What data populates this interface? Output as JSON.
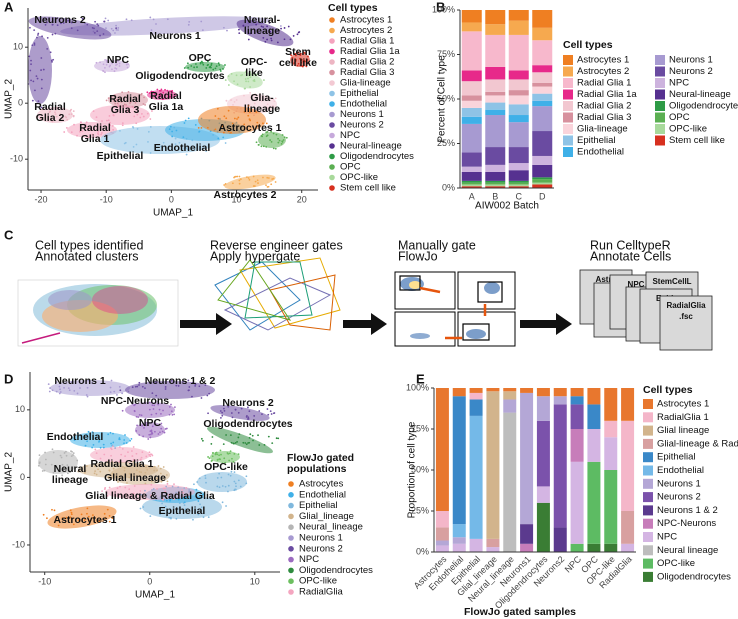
{
  "panel_letters": [
    "A",
    "B",
    "C",
    "D",
    "E"
  ],
  "chart_data": [
    {
      "type": "umap",
      "x_label": "UMAP_1",
      "y_label": "UMAP_2",
      "xlim": [
        -22,
        22.5
      ],
      "xticks": [
        -20,
        -10,
        0,
        10,
        20
      ],
      "ylim": [
        -15.5,
        17
      ],
      "yticks": [
        -10,
        0,
        10
      ],
      "legend_title": "Cell types",
      "legend": [
        {
          "name": "Astrocytes 1",
          "color": "#EF7F22"
        },
        {
          "name": "Astrocytes 2",
          "color": "#F6A94F"
        },
        {
          "name": "Radial Glia 1",
          "color": "#F4A3BE"
        },
        {
          "name": "Radial Glia 1a",
          "color": "#E7298A"
        },
        {
          "name": "Radial Glia 2",
          "color": "#EDB5C3"
        },
        {
          "name": "Radial Glia 3",
          "color": "#D7919E"
        },
        {
          "name": "Glia-lineage",
          "color": "#F3C9D3"
        },
        {
          "name": "Epithelial",
          "color": "#8EC3E6"
        },
        {
          "name": "Endothelial",
          "color": "#3FB0E8"
        },
        {
          "name": "Neurons 1",
          "color": "#A79AD1"
        },
        {
          "name": "Neurons 2",
          "color": "#6A4BA1"
        },
        {
          "name": "NPC",
          "color": "#C6A9DB"
        },
        {
          "name": "Neural-lineage",
          "color": "#563190"
        },
        {
          "name": "Oligodendrocytes",
          "color": "#2E9B46"
        },
        {
          "name": "OPC",
          "color": "#5BAF52"
        },
        {
          "name": "OPC-like",
          "color": "#A8D99B"
        },
        {
          "name": "Stem cell like",
          "color": "#D7301F"
        }
      ],
      "annotations": [
        [
          "Neurons 2"
        ],
        [
          "Neurons 1"
        ],
        [
          "Neural-",
          "lineage"
        ],
        [
          "Stem",
          "cell like"
        ],
        [
          "NPC"
        ],
        [
          "OPC"
        ],
        [
          "OPC-",
          "like"
        ],
        [
          "Oligodendrocytes"
        ],
        [
          "Radial",
          "Glia 1a"
        ],
        [
          "Radial",
          "Glia 3"
        ],
        [
          "Radial",
          "Glia 2"
        ],
        [
          "Glia-",
          "lineage"
        ],
        [
          "Astrocytes 1"
        ],
        [
          "Radial",
          "Glia 1"
        ],
        [
          "Endothelial"
        ],
        [
          "Epithelial"
        ],
        [
          "Astrocytes 2"
        ]
      ]
    },
    {
      "type": "stacked_bar",
      "x_label": "AIW002 Batch",
      "y_label": "Percent of Cell type",
      "categories": [
        "A",
        "B",
        "C",
        "D"
      ],
      "ylim": [
        0,
        100
      ],
      "yticks": [
        {
          "value": 0,
          "label": "0%"
        },
        {
          "value": 25,
          "label": "25%"
        },
        {
          "value": 50,
          "label": "50%"
        },
        {
          "value": 75,
          "label": "75%"
        },
        {
          "value": 100,
          "label": "100%"
        }
      ],
      "legend_title": "Cell types",
      "series": [
        {
          "name": "Astrocytes 1",
          "color": "#EF7F22",
          "values": [
            7,
            8,
            6,
            10
          ]
        },
        {
          "name": "Astrocytes 2",
          "color": "#F6A94F",
          "values": [
            5,
            6,
            8,
            7
          ]
        },
        {
          "name": "Radial Glia 1",
          "color": "#F7B8CC",
          "values": [
            22,
            18,
            20,
            14
          ]
        },
        {
          "name": "Radial Glia 1a",
          "color": "#E7298A",
          "values": [
            6,
            7,
            5,
            4
          ]
        },
        {
          "name": "Radial Glia 2",
          "color": "#F2C7D0",
          "values": [
            8,
            7,
            6,
            6
          ]
        },
        {
          "name": "Radial Glia 3",
          "color": "#D7919E",
          "values": [
            3,
            2,
            3,
            2
          ]
        },
        {
          "name": "Glia-lineage",
          "color": "#FAD4DB",
          "values": [
            4,
            4,
            5,
            4
          ]
        },
        {
          "name": "Epithelial",
          "color": "#8EC3E6",
          "values": [
            5,
            4,
            6,
            4
          ]
        },
        {
          "name": "Endothelial",
          "color": "#3FB0E8",
          "values": [
            4,
            3,
            4,
            3
          ]
        },
        {
          "name": "Neurons 1",
          "color": "#A79AD1",
          "values": [
            16,
            18,
            14,
            14
          ]
        },
        {
          "name": "Neurons 2",
          "color": "#6A4BA1",
          "values": [
            8,
            10,
            9,
            14
          ]
        },
        {
          "name": "NPC",
          "color": "#CDB3DE",
          "values": [
            3,
            4,
            4,
            5
          ]
        },
        {
          "name": "Neural-lineage",
          "color": "#563190",
          "values": [
            5,
            5,
            6,
            7
          ]
        },
        {
          "name": "Oligodendrocytes",
          "color": "#2E9B46",
          "values": [
            1,
            1,
            1,
            1
          ]
        },
        {
          "name": "OPC",
          "color": "#5BAF52",
          "values": [
            1,
            1,
            1,
            2
          ]
        },
        {
          "name": "OPC-like",
          "color": "#A8D99B",
          "values": [
            1,
            1,
            1,
            1
          ]
        },
        {
          "name": "Stem cell like",
          "color": "#D7301F",
          "values": [
            1,
            1,
            1,
            2
          ]
        }
      ]
    },
    {
      "type": "umap",
      "x_label": "UMAP_1",
      "y_label": "UMAP_2",
      "xlim": [
        -11.4,
        12.4
      ],
      "xticks": [
        -10,
        0,
        10
      ],
      "ylim": [
        -14,
        15.6
      ],
      "yticks": [
        -10,
        0,
        10
      ],
      "legend_title": [
        "FlowJo gated",
        "populations"
      ],
      "legend": [
        {
          "name": "Astrocytes",
          "color": "#EF7F22"
        },
        {
          "name": "Endothelial",
          "color": "#3FB0E8"
        },
        {
          "name": "Epithelial",
          "color": "#7FB8DD"
        },
        {
          "name": "Glial_lineage",
          "color": "#D2B48C"
        },
        {
          "name": "Neural_lineage",
          "color": "#B5B5B5"
        },
        {
          "name": "Neurons 1",
          "color": "#A79AD1"
        },
        {
          "name": "Neurons 2",
          "color": "#6A4BA1"
        },
        {
          "name": "NPC",
          "color": "#9B6BC0"
        },
        {
          "name": "Oligodendrocytes",
          "color": "#2E8B3E"
        },
        {
          "name": "OPC-like",
          "color": "#6CBF5F"
        },
        {
          "name": "RadialGlia",
          "color": "#F4A6C0"
        }
      ],
      "annotations": [
        [
          "Neurons 1"
        ],
        [
          "Neurons 1 & 2"
        ],
        [
          "NPC-Neurons"
        ],
        [
          "Neurons 2"
        ],
        [
          "NPC"
        ],
        [
          "Oligodendrocytes"
        ],
        [
          "Endothelial"
        ],
        [
          "OPC-like"
        ],
        [
          "Neural",
          "lineage"
        ],
        [
          "Radial Glia 1"
        ],
        [
          "Glial lineage"
        ],
        [
          "Glial lineage & Radial Glia"
        ],
        [
          "Epithelial"
        ],
        [
          "Astrocytes 1"
        ]
      ]
    },
    {
      "type": "stacked_bar",
      "x_label": "FlowJo gated samples",
      "y_label": "Proportion of cell type",
      "rotate_labels": true,
      "categories": [
        "Astrocytes",
        "Endothelial",
        "Epithelial",
        "Glial_lineage",
        "Neural_lineage",
        "Neurons1",
        "Oligodendrocytes",
        "Neurons2",
        "NPC",
        "OPC",
        "OPC-like",
        "RadialGlia"
      ],
      "ylim": [
        0,
        100
      ],
      "yticks": [
        {
          "value": 0,
          "label": "0%"
        },
        {
          "value": 25,
          "label": "25%"
        },
        {
          "value": 50,
          "label": "50%"
        },
        {
          "value": 75,
          "label": "75%"
        },
        {
          "value": 100,
          "label": "100%"
        }
      ],
      "legend_title": "Cell types",
      "series": [
        {
          "name": "Astrocytes 1",
          "color": "#E8772E",
          "values": [
            75,
            5,
            3,
            2,
            2,
            3,
            5,
            5,
            5,
            10,
            20,
            20
          ]
        },
        {
          "name": "RadialGlia 1",
          "color": "#F4B6C9",
          "values": [
            10,
            0,
            4,
            0,
            0,
            0,
            0,
            0,
            0,
            0,
            10,
            55
          ]
        },
        {
          "name": "Glial lineage",
          "color": "#D2B48C",
          "values": [
            0,
            0,
            0,
            90,
            5,
            0,
            0,
            0,
            0,
            0,
            0,
            0
          ]
        },
        {
          "name": "Glial-lineage & Radial Glia",
          "color": "#D8A0A0",
          "values": [
            8,
            0,
            0,
            5,
            0,
            0,
            0,
            0,
            0,
            0,
            0,
            20
          ]
        },
        {
          "name": "Epithelial",
          "color": "#3A88C8",
          "values": [
            0,
            78,
            10,
            0,
            0,
            0,
            0,
            0,
            5,
            15,
            0,
            0
          ]
        },
        {
          "name": "Endothelial",
          "color": "#74B9E8",
          "values": [
            0,
            8,
            75,
            0,
            0,
            0,
            0,
            0,
            0,
            0,
            0,
            0
          ]
        },
        {
          "name": "Neurons 1",
          "color": "#B4A7D6",
          "values": [
            3,
            4,
            0,
            0,
            8,
            80,
            15,
            5,
            0,
            0,
            0,
            0
          ]
        },
        {
          "name": "Neurons 2",
          "color": "#7B52AB",
          "values": [
            0,
            0,
            0,
            0,
            0,
            0,
            40,
            75,
            15,
            0,
            0,
            0
          ]
        },
        {
          "name": "Neurons 1 & 2",
          "color": "#5B3A8E",
          "values": [
            0,
            0,
            0,
            0,
            0,
            12,
            0,
            15,
            0,
            0,
            0,
            0
          ]
        },
        {
          "name": "NPC-Neurons",
          "color": "#C77DBA",
          "values": [
            0,
            0,
            0,
            0,
            0,
            5,
            0,
            0,
            20,
            0,
            0,
            0
          ]
        },
        {
          "name": "NPC",
          "color": "#D4B5E3",
          "values": [
            4,
            5,
            8,
            3,
            0,
            0,
            10,
            0,
            50,
            20,
            20,
            5
          ]
        },
        {
          "name": "Neural lineage",
          "color": "#BDBDBD",
          "values": [
            0,
            0,
            0,
            0,
            85,
            0,
            0,
            0,
            0,
            0,
            0,
            0
          ]
        },
        {
          "name": "OPC-like",
          "color": "#5DBB63",
          "values": [
            0,
            0,
            0,
            0,
            0,
            0,
            0,
            0,
            5,
            50,
            45,
            0
          ]
        },
        {
          "name": "Oligodendrocytes",
          "color": "#3A7D34",
          "values": [
            0,
            0,
            0,
            0,
            0,
            0,
            30,
            0,
            0,
            5,
            5,
            0
          ]
        }
      ]
    }
  ],
  "diagram": {
    "steps": [
      [
        "Cell types identified",
        "Annotated clusters"
      ],
      [
        "Reverse engineer gates",
        "Apply hypergate"
      ],
      [
        "Manually gate",
        "FlowJo"
      ],
      [
        "Run CelltypeR",
        "Annotate Cells"
      ]
    ],
    "files": [
      [
        "Astro"
      ],
      [
        "Oligo",
        ".fs"
      ],
      [
        "NPC",
        ".fs"
      ],
      [
        "Neuro",
        ".fs"
      ],
      [
        "StemCellL"
      ],
      [
        "Epith",
        ".fs"
      ],
      [
        "RadialGlia",
        ".fsc"
      ]
    ]
  }
}
